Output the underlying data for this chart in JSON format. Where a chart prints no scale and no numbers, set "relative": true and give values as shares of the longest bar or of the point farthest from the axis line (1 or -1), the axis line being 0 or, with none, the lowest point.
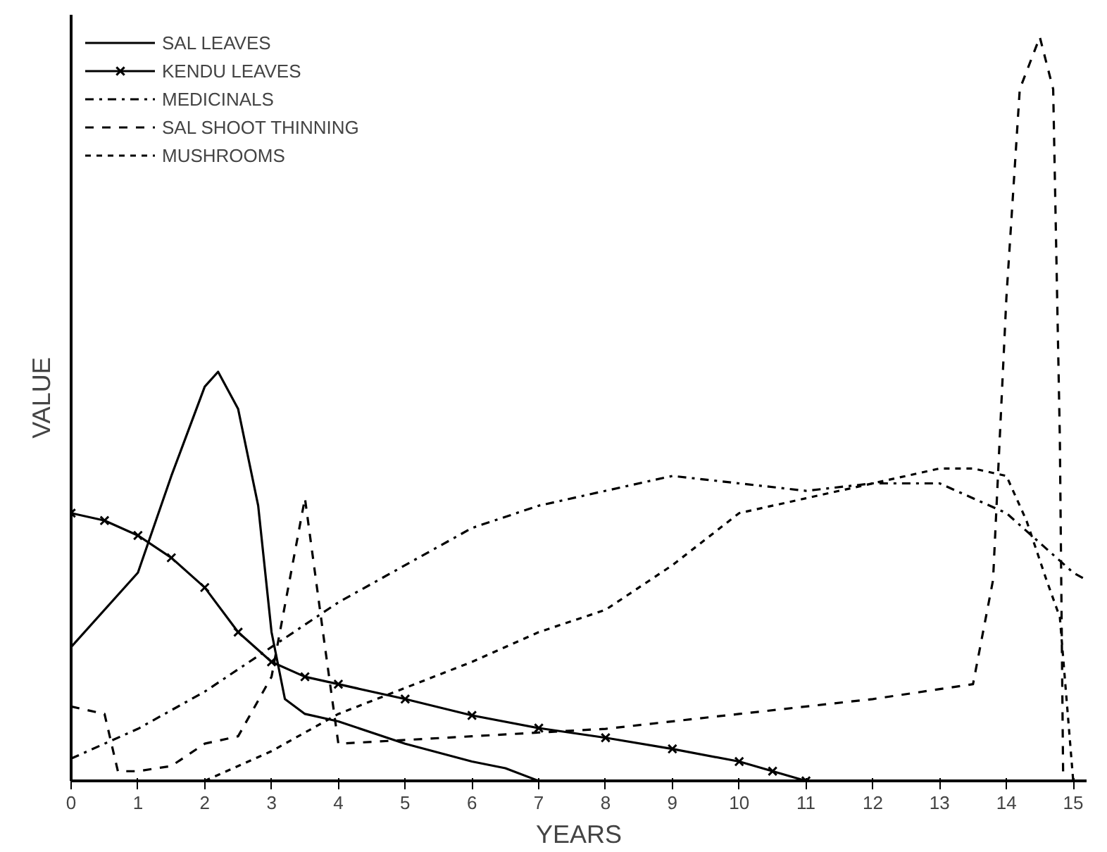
{
  "chart_data": {
    "type": "line",
    "relative": true,
    "xlabel": "YEARS",
    "ylabel": "VALUE",
    "xlim": [
      0,
      15.2
    ],
    "xticks": [
      0,
      1,
      2,
      3,
      4,
      5,
      6,
      7,
      8,
      9,
      10,
      11,
      12,
      13,
      14,
      15
    ],
    "grid": false,
    "legend": "top left",
    "series": [
      {
        "name": "SAL LEAVES",
        "color": "#000000",
        "line_style": "solid",
        "marker": "none",
        "x": [
          0,
          1,
          1.5,
          2,
          2.2,
          2.5,
          2.8,
          3,
          3.2,
          3.5,
          4,
          5,
          6,
          6.5,
          7
        ],
        "values": [
          0.18,
          0.28,
          0.41,
          0.53,
          0.55,
          0.5,
          0.37,
          0.2,
          0.11,
          0.09,
          0.08,
          0.05,
          0.026,
          0.017,
          0
        ]
      },
      {
        "name": "KENDU LEAVES",
        "color": "#000000",
        "line_style": "solid",
        "marker": "cross",
        "x": [
          0,
          0.5,
          1,
          1.5,
          2,
          2.5,
          3,
          3.5,
          4,
          5,
          6,
          7,
          8,
          9,
          10,
          10.5,
          11
        ],
        "values": [
          0.36,
          0.35,
          0.33,
          0.3,
          0.26,
          0.2,
          0.16,
          0.14,
          0.13,
          0.11,
          0.088,
          0.071,
          0.058,
          0.043,
          0.026,
          0.013,
          0
        ]
      },
      {
        "name": "MEDICINALS",
        "color": "#000000",
        "line_style": "dashdot",
        "marker": "none",
        "x": [
          0,
          1,
          2,
          3,
          4,
          5,
          6,
          7,
          8,
          9,
          10,
          11,
          12,
          13,
          14,
          14.5,
          15,
          15.2
        ],
        "values": [
          0.03,
          0.07,
          0.12,
          0.18,
          0.24,
          0.29,
          0.34,
          0.37,
          0.39,
          0.41,
          0.4,
          0.39,
          0.4,
          0.4,
          0.36,
          0.32,
          0.28,
          0.27
        ]
      },
      {
        "name": "SAL SHOOT THINNING",
        "color": "#000000",
        "line_style": "dashed",
        "marker": "none",
        "x": [
          0,
          0.5,
          0.7,
          1,
          1.5,
          2,
          2.5,
          3,
          3.5,
          3.8,
          4,
          6,
          8,
          10,
          12,
          13.5,
          13.8,
          14,
          14.2,
          14.5,
          14.7,
          14.8,
          14.85
        ],
        "values": [
          0.1,
          0.09,
          0.013,
          0.013,
          0.02,
          0.05,
          0.06,
          0.14,
          0.38,
          0.18,
          0.05,
          0.06,
          0.07,
          0.09,
          0.11,
          0.13,
          0.27,
          0.65,
          0.93,
          1.0,
          0.93,
          0.46,
          0
        ]
      },
      {
        "name": "MUSHROOMS",
        "color": "#000000",
        "line_style": "dotted",
        "marker": "none",
        "x": [
          2,
          3,
          4,
          5,
          6,
          7,
          8,
          9,
          10,
          11,
          12,
          13,
          13.5,
          14,
          14.3,
          14.6,
          14.8,
          15
        ],
        "values": [
          0,
          0.04,
          0.09,
          0.125,
          0.16,
          0.2,
          0.23,
          0.29,
          0.36,
          0.38,
          0.4,
          0.42,
          0.42,
          0.41,
          0.35,
          0.27,
          0.22,
          0
        ]
      }
    ]
  }
}
